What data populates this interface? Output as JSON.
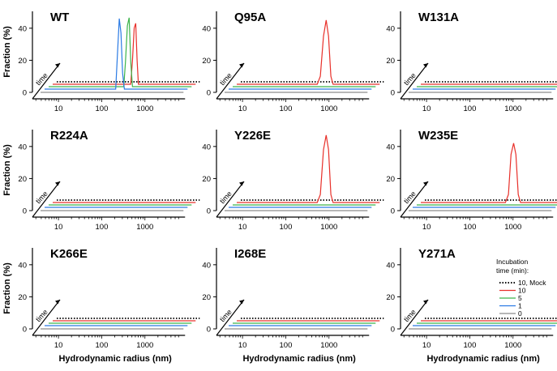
{
  "chart_data": {
    "type": "line",
    "layout": "3x3 grid of panels",
    "xlabel": "Hydrodynamic radius (nm)",
    "ylabel": "Fraction (%)",
    "xscale": "log",
    "xlim": [
      2.5,
      6000
    ],
    "ylim": [
      0,
      48
    ],
    "xticks": [
      10,
      100,
      1000
    ],
    "yticks": [
      0,
      20,
      40
    ],
    "depth_axis_label": "time",
    "legend": {
      "title_line1": "Incubation",
      "title_line2": "time (min):",
      "entries": [
        {
          "label": "10, Mock",
          "color": "#000000",
          "style": "dotted"
        },
        {
          "label": "10",
          "color": "#e8302a",
          "style": "solid"
        },
        {
          "label": "5",
          "color": "#3cb44b",
          "style": "solid"
        },
        {
          "label": "1",
          "color": "#2b7be4",
          "style": "solid"
        },
        {
          "label": "0",
          "color": "#8c8c8c",
          "style": "solid"
        }
      ]
    },
    "series_order_back_to_front": [
      "10, Mock",
      "10",
      "5",
      "1",
      "0"
    ],
    "panels": [
      {
        "title": "WT",
        "show_ylabel": true,
        "show_xlabel": false,
        "peaks": [
          {
            "series": "1",
            "x": [
              170,
              185,
              205,
              225,
              245,
              270
            ],
            "y": [
              0,
              20,
              44,
              35,
              10,
              0
            ]
          },
          {
            "series": "5",
            "x": [
              210,
              230,
              255,
              280,
              305,
              335
            ],
            "y": [
              0,
              15,
              38,
              43,
              15,
              0
            ]
          },
          {
            "series": "10",
            "x": [
              245,
              270,
              295,
              320,
              345,
              370
            ],
            "y": [
              0,
              15,
              35,
              38,
              15,
              0
            ]
          }
        ]
      },
      {
        "title": "Q95A",
        "show_ylabel": false,
        "show_xlabel": false,
        "peaks": [
          {
            "series": "10",
            "x": [
              280,
              330,
              390,
              450,
              510,
              580,
              650
            ],
            "y": [
              0,
              5,
              30,
              40,
              30,
              5,
              0
            ]
          }
        ]
      },
      {
        "title": "W131A",
        "show_ylabel": false,
        "show_xlabel": false,
        "peaks": []
      },
      {
        "title": "R224A",
        "show_ylabel": true,
        "show_xlabel": false,
        "peaks": []
      },
      {
        "title": "Y226E",
        "show_ylabel": false,
        "show_xlabel": false,
        "peaks": [
          {
            "series": "10",
            "x": [
              280,
              330,
              390,
              450,
              510,
              580,
              650
            ],
            "y": [
              0,
              5,
              33,
              42,
              33,
              5,
              0
            ]
          }
        ]
      },
      {
        "title": "W235E",
        "show_ylabel": false,
        "show_xlabel": false,
        "peaks": [
          {
            "series": "10",
            "x": [
              350,
              410,
              470,
              540,
              610,
              690,
              780
            ],
            "y": [
              0,
              5,
              30,
              37,
              30,
              5,
              0
            ]
          }
        ]
      },
      {
        "title": "K266E",
        "show_ylabel": true,
        "show_xlabel": true,
        "peaks": []
      },
      {
        "title": "I268E",
        "show_ylabel": false,
        "show_xlabel": true,
        "peaks": []
      },
      {
        "title": "Y271A",
        "show_ylabel": false,
        "show_xlabel": true,
        "peaks": [],
        "show_legend": true
      }
    ]
  }
}
